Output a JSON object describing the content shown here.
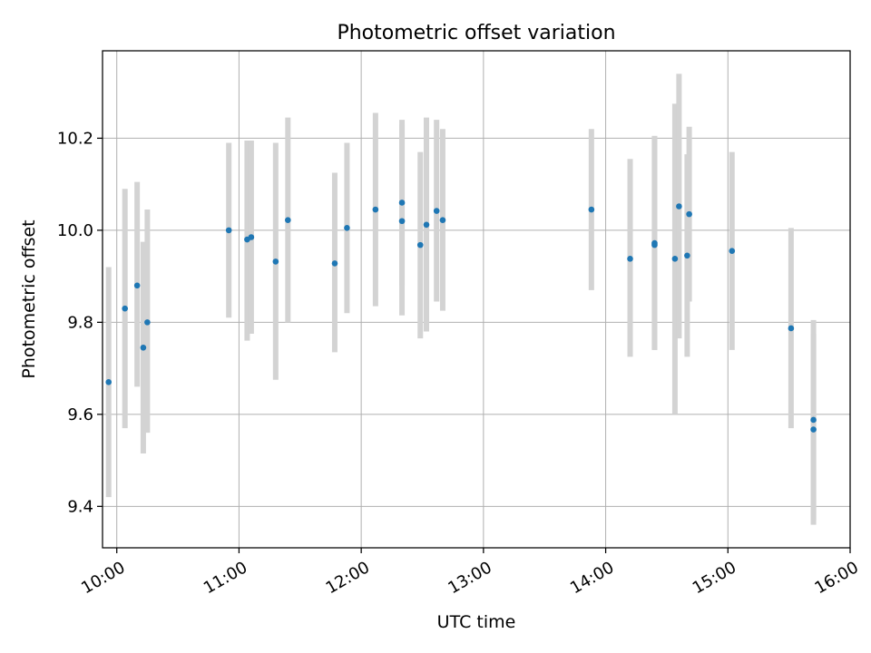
{
  "chart_data": {
    "type": "scatter",
    "title": "Photometric offset variation",
    "xlabel": "UTC time",
    "ylabel": "Photometric offset",
    "x_is_time": true,
    "xlim": [
      "09:53",
      "16:00"
    ],
    "ylim": [
      9.31,
      10.39
    ],
    "x_ticks": [
      "10:00",
      "11:00",
      "12:00",
      "13:00",
      "14:00",
      "15:00",
      "16:00"
    ],
    "y_ticks": [
      9.4,
      9.6,
      9.8,
      10.0,
      10.2
    ],
    "grid": true,
    "point_color": "#1f77b4",
    "errorbar_color": "#d3d3d3",
    "points": [
      {
        "x": "09:56",
        "y": 9.67,
        "err_low": 9.42,
        "err_high": 9.92
      },
      {
        "x": "10:04",
        "y": 9.83,
        "err_low": 9.57,
        "err_high": 10.09
      },
      {
        "x": "10:10",
        "y": 9.88,
        "err_low": 9.66,
        "err_high": 10.105
      },
      {
        "x": "10:13",
        "y": 9.745,
        "err_low": 9.515,
        "err_high": 9.975
      },
      {
        "x": "10:15",
        "y": 9.8,
        "err_low": 9.56,
        "err_high": 10.045
      },
      {
        "x": "10:55",
        "y": 10.0,
        "err_low": 9.81,
        "err_high": 10.19
      },
      {
        "x": "11:04",
        "y": 9.98,
        "err_low": 9.76,
        "err_high": 10.195
      },
      {
        "x": "11:06",
        "y": 9.985,
        "err_low": 9.775,
        "err_high": 10.195
      },
      {
        "x": "11:18",
        "y": 9.932,
        "err_low": 9.675,
        "err_high": 10.19
      },
      {
        "x": "11:24",
        "y": 10.022,
        "err_low": 9.8,
        "err_high": 10.245
      },
      {
        "x": "11:47",
        "y": 9.928,
        "err_low": 9.735,
        "err_high": 10.125
      },
      {
        "x": "11:53",
        "y": 10.005,
        "err_low": 9.82,
        "err_high": 10.19
      },
      {
        "x": "12:07",
        "y": 10.045,
        "err_low": 9.835,
        "err_high": 10.255
      },
      {
        "x": "12:20",
        "y": 10.02,
        "err_low": 9.815,
        "err_high": 10.23
      },
      {
        "x": "12:20",
        "y": 10.06,
        "err_low": 9.88,
        "err_high": 10.24
      },
      {
        "x": "12:29",
        "y": 9.968,
        "err_low": 9.765,
        "err_high": 10.17
      },
      {
        "x": "12:32",
        "y": 10.012,
        "err_low": 9.78,
        "err_high": 10.245
      },
      {
        "x": "12:37",
        "y": 10.042,
        "err_low": 9.845,
        "err_high": 10.24
      },
      {
        "x": "12:40",
        "y": 10.022,
        "err_low": 9.825,
        "err_high": 10.22
      },
      {
        "x": "13:53",
        "y": 10.045,
        "err_low": 9.87,
        "err_high": 10.22
      },
      {
        "x": "14:12",
        "y": 9.938,
        "err_low": 9.725,
        "err_high": 10.155
      },
      {
        "x": "14:24",
        "y": 9.968,
        "err_low": 9.74,
        "err_high": 10.205
      },
      {
        "x": "14:24",
        "y": 9.972,
        "err_low": 9.74,
        "err_high": 10.205
      },
      {
        "x": "14:34",
        "y": 9.938,
        "err_low": 9.6,
        "err_high": 10.275
      },
      {
        "x": "14:36",
        "y": 10.052,
        "err_low": 9.765,
        "err_high": 10.34
      },
      {
        "x": "14:40",
        "y": 9.945,
        "err_low": 9.725,
        "err_high": 10.165
      },
      {
        "x": "14:41",
        "y": 10.035,
        "err_low": 9.845,
        "err_high": 10.225
      },
      {
        "x": "15:02",
        "y": 9.955,
        "err_low": 9.74,
        "err_high": 10.17
      },
      {
        "x": "15:31",
        "y": 9.787,
        "err_low": 9.57,
        "err_high": 10.005
      },
      {
        "x": "15:42",
        "y": 9.588,
        "err_low": 9.37,
        "err_high": 9.805
      },
      {
        "x": "15:42",
        "y": 9.567,
        "err_low": 9.36,
        "err_high": 9.775
      }
    ]
  }
}
